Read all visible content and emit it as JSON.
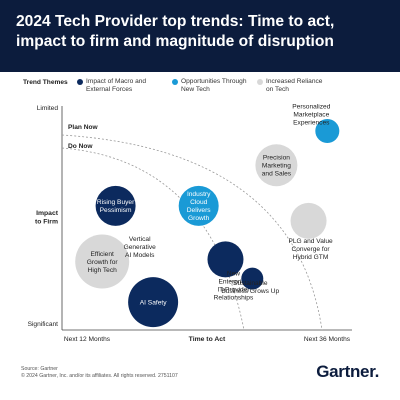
{
  "title_lines": [
    "2024 Tech Provider top trends: Time to act,",
    "impact to firm and magnitude of disruption"
  ],
  "legend": {
    "label": "Trend Themes",
    "items": [
      {
        "lines": [
          "Impact of Macro and",
          "External Forces"
        ],
        "color": "#0c2a5e"
      },
      {
        "lines": [
          "Opportunities Through",
          "New Tech"
        ],
        "color": "#1a9ad6"
      },
      {
        "lines": [
          "Increased Reliance",
          "on Tech"
        ],
        "color": "#d8d8d8"
      }
    ]
  },
  "chart_data": {
    "type": "scatter",
    "xlabel": "Time to Act",
    "ylabel": [
      "Impact",
      "to Firm"
    ],
    "x_tick_labels": [
      "Next 12 Months",
      "Next 36 Months"
    ],
    "y_tick_labels": [
      "Limited",
      "Significant"
    ],
    "zones": [
      "Plan Now",
      "Do Now"
    ],
    "series": [
      {
        "name": "Impact of Macro and External Forces",
        "color": "#0c2a5e",
        "points": [
          {
            "label": [
              "Rising Buyer",
              "Pessimism"
            ],
            "x": 0.2,
            "y": 0.58
          },
          {
            "label": [
              "AI Safety"
            ],
            "x": 0.34,
            "y": 0.13
          },
          {
            "label": [
              "New",
              "Enterprise",
              "IT-Provider",
              "Relationships"
            ],
            "x": 0.61,
            "y": 0.33
          },
          {
            "label": [
              "Sustainable",
              "Business Grows Up"
            ],
            "x": 0.71,
            "y": 0.24
          }
        ]
      },
      {
        "name": "Opportunities Through New Tech",
        "color": "#1a9ad6",
        "points": [
          {
            "label": [
              "Personalized",
              "Marketplace",
              "Experiences"
            ],
            "x": 0.99,
            "y": 0.93
          },
          {
            "label": [
              "Industry",
              "Cloud",
              "Delivers",
              "Growth"
            ],
            "x": 0.51,
            "y": 0.58
          }
        ]
      },
      {
        "name": "Increased Reliance on Tech",
        "color": "#d8d8d8",
        "points": [
          {
            "label": [
              "Precision",
              "Marketing",
              "and Sales"
            ],
            "x": 0.8,
            "y": 0.77
          },
          {
            "label": [
              "Efficient",
              "Growth for",
              "High Tech"
            ],
            "x": 0.15,
            "y": 0.32
          },
          {
            "label": [
              "Vertical",
              "Generative",
              "AI Models"
            ],
            "x": 0.29,
            "y": 0.39
          },
          {
            "label": [
              "PLG and Value",
              "Converge for",
              "Hybrid GTM"
            ],
            "x": 0.92,
            "y": 0.51
          }
        ]
      }
    ]
  },
  "footer": {
    "source": "Source: Gartner",
    "copyright": "© 2024 Gartner, Inc. and/or its affiliates. All rights reserved. 2751107"
  },
  "logo": "Gartner."
}
